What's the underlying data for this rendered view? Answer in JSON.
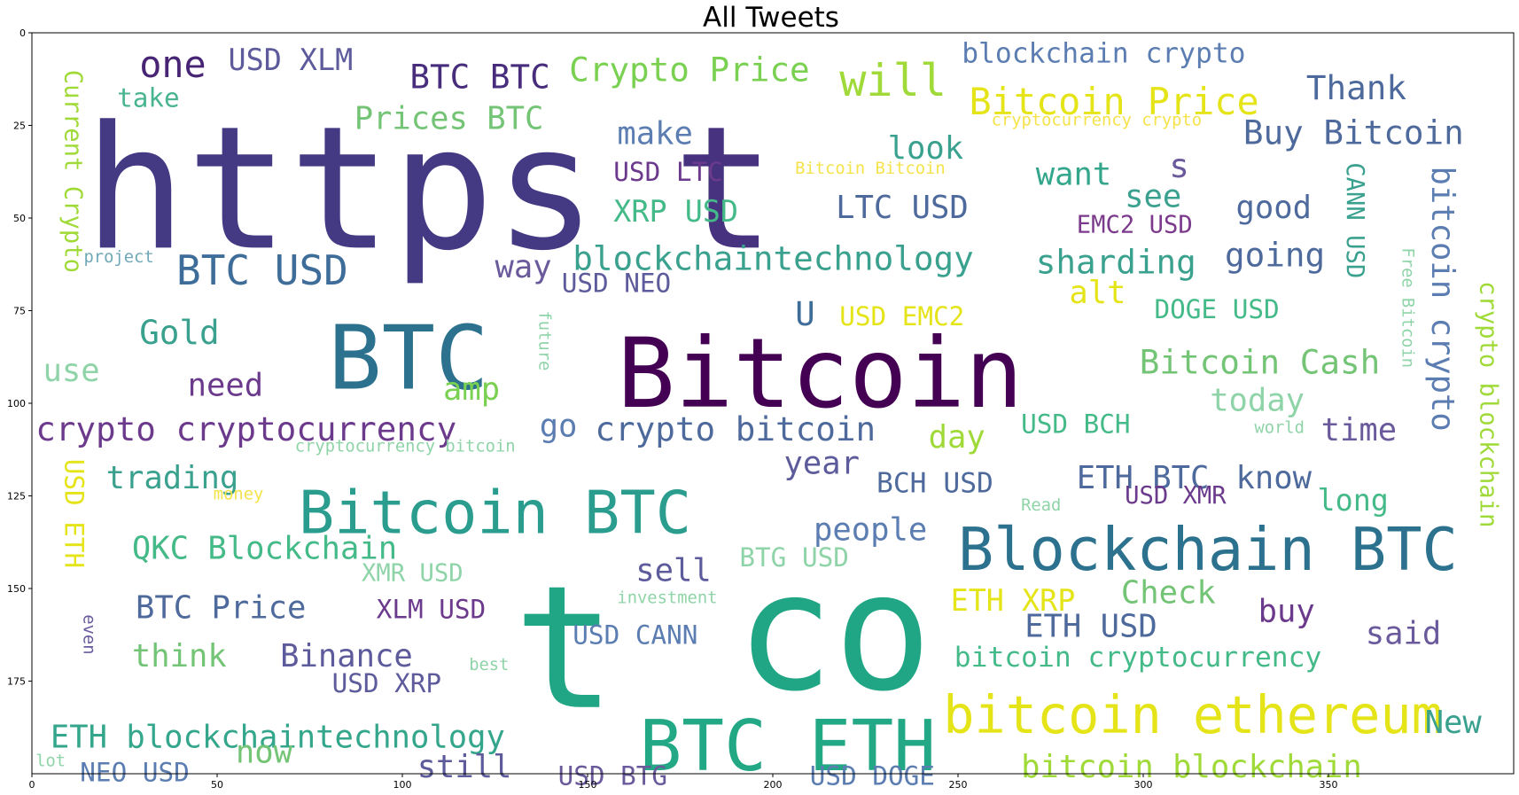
{
  "chart_data": {
    "type": "wordcloud",
    "title": "All Tweets",
    "xlim": [
      0,
      400
    ],
    "ylim": [
      200,
      0
    ],
    "x_ticks": [
      0,
      50,
      100,
      150,
      200,
      250,
      300,
      350
    ],
    "y_ticks": [
      0,
      25,
      50,
      75,
      100,
      125,
      150,
      175
    ],
    "words": [
      {
        "text": "https",
        "x": 14,
        "y": 58,
        "size": 46,
        "color": "#443a83",
        "rot": 0
      },
      {
        "text": "t",
        "x": 173,
        "y": 58,
        "size": 46,
        "color": "#46327e",
        "rot": 0
      },
      {
        "text": "Bitcoin",
        "x": 158,
        "y": 101,
        "size": 26,
        "color": "#440154",
        "rot": 0
      },
      {
        "text": "BTC",
        "x": 80,
        "y": 96,
        "size": 24,
        "color": "#2c728e",
        "rot": 0
      },
      {
        "text": "t",
        "x": 130,
        "y": 182,
        "size": 46,
        "color": "#21a685",
        "rot": 0
      },
      {
        "text": "co",
        "x": 190,
        "y": 177,
        "size": 44,
        "color": "#21a685",
        "rot": 0
      },
      {
        "text": "Bitcoin BTC",
        "x": 72,
        "y": 135,
        "size": 16,
        "color": "#2a9d8f",
        "rot": 0
      },
      {
        "text": "Blockchain BTC",
        "x": 250,
        "y": 145,
        "size": 16,
        "color": "#2c728e",
        "rot": 0
      },
      {
        "text": "BTC ETH",
        "x": 164,
        "y": 199,
        "size": 19,
        "color": "#22a884",
        "rot": 0
      },
      {
        "text": "bitcoin ethereum",
        "x": 246,
        "y": 189,
        "size": 14,
        "color": "#e5e419",
        "rot": 0
      },
      {
        "text": "Bitcoin Price",
        "x": 253,
        "y": 22,
        "size": 10,
        "color": "#e5e419",
        "rot": 0
      },
      {
        "text": "will",
        "x": 218,
        "y": 17,
        "size": 12,
        "color": "#a0da39",
        "rot": 0
      },
      {
        "text": "Crypto Price",
        "x": 145,
        "y": 13,
        "size": 9,
        "color": "#7ad151",
        "rot": 0
      },
      {
        "text": "BTC BTC",
        "x": 102,
        "y": 15,
        "size": 9,
        "color": "#472d7b",
        "rot": 0
      },
      {
        "text": "one",
        "x": 29,
        "y": 12,
        "size": 10,
        "color": "#482475",
        "rot": 0
      },
      {
        "text": "USD XLM",
        "x": 53,
        "y": 10,
        "size": 8,
        "color": "#5d5b9b",
        "rot": 0
      },
      {
        "text": "blockchain crypto",
        "x": 251,
        "y": 8,
        "size": 7.5,
        "color": "#5b7db1",
        "rot": 0
      },
      {
        "text": "Thank",
        "x": 344,
        "y": 18,
        "size": 9,
        "color": "#4e6a9c",
        "rot": 0
      },
      {
        "text": "Buy Bitcoin",
        "x": 327,
        "y": 30,
        "size": 9,
        "color": "#4e6a9c",
        "rot": 0
      },
      {
        "text": "cryptocurrency crypto",
        "x": 259,
        "y": 25,
        "size": 4.5,
        "color": "#f5e34b",
        "rot": 0
      },
      {
        "text": "take",
        "x": 23,
        "y": 20,
        "size": 7,
        "color": "#49b490",
        "rot": 0
      },
      {
        "text": "Prices BTC",
        "x": 87,
        "y": 26,
        "size": 8.5,
        "color": "#74c476",
        "rot": 0
      },
      {
        "text": "make",
        "x": 158,
        "y": 30,
        "size": 8.5,
        "color": "#5b7db1",
        "rot": 0
      },
      {
        "text": "look",
        "x": 231,
        "y": 34,
        "size": 8.5,
        "color": "#3aa18f",
        "rot": 0
      },
      {
        "text": "want",
        "x": 271,
        "y": 41,
        "size": 8.5,
        "color": "#33a68b",
        "rot": 0
      },
      {
        "text": "s",
        "x": 307,
        "y": 39,
        "size": 9,
        "color": "#6a5a9c",
        "rot": 0
      },
      {
        "text": "USD LTC",
        "x": 157,
        "y": 40,
        "size": 7,
        "color": "#6c3a8c",
        "rot": 0
      },
      {
        "text": "Bitcoin Bitcoin",
        "x": 206,
        "y": 38,
        "size": 4.5,
        "color": "#f5e34b",
        "rot": 0
      },
      {
        "text": "XRP USD",
        "x": 157,
        "y": 51,
        "size": 8,
        "color": "#45ba89",
        "rot": 0
      },
      {
        "text": "LTC USD",
        "x": 217,
        "y": 50,
        "size": 8.5,
        "color": "#4e6a9c",
        "rot": 0
      },
      {
        "text": "see",
        "x": 295,
        "y": 47,
        "size": 8.5,
        "color": "#3aa18f",
        "rot": 0
      },
      {
        "text": "good",
        "x": 325,
        "y": 50,
        "size": 8.5,
        "color": "#4e6a9c",
        "rot": 0
      },
      {
        "text": "EMC2 USD",
        "x": 282,
        "y": 54,
        "size": 6.5,
        "color": "#7b3a8c",
        "rot": 0
      },
      {
        "text": "Current Crypto",
        "x": 9,
        "y": 10,
        "size": 6.5,
        "color": "#a0da39",
        "rot": 90
      },
      {
        "text": "CANN USD",
        "x": 355,
        "y": 35,
        "size": 6.5,
        "color": "#3aa18f",
        "rot": 90
      },
      {
        "text": "bitcoin crypto",
        "x": 378,
        "y": 36,
        "size": 8.5,
        "color": "#5b7db1",
        "rot": 90
      },
      {
        "text": "crypto blockchain",
        "x": 391,
        "y": 67,
        "size": 6.5,
        "color": "#a0da39",
        "rot": 90
      },
      {
        "text": "Free Bitcoin",
        "x": 370,
        "y": 58,
        "size": 4.5,
        "color": "#8fd4a8",
        "rot": 90
      },
      {
        "text": "project",
        "x": 14,
        "y": 62,
        "size": 4.5,
        "color": "#6fa8b8",
        "rot": 0
      },
      {
        "text": "BTC USD",
        "x": 39,
        "y": 68,
        "size": 11,
        "color": "#3f6d9a",
        "rot": 0
      },
      {
        "text": "way",
        "x": 125,
        "y": 66,
        "size": 8.5,
        "color": "#6a5a9c",
        "rot": 0
      },
      {
        "text": "blockchaintechnology",
        "x": 146,
        "y": 64,
        "size": 9,
        "color": "#3aa18f",
        "rot": 0
      },
      {
        "text": "sharding",
        "x": 271,
        "y": 65,
        "size": 9,
        "color": "#3aa18f",
        "rot": 0
      },
      {
        "text": "going",
        "x": 322,
        "y": 63,
        "size": 9,
        "color": "#4e6a9c",
        "rot": 0
      },
      {
        "text": "USD NEO",
        "x": 143,
        "y": 70,
        "size": 7,
        "color": "#5d5b9b",
        "rot": 0
      },
      {
        "text": "alt",
        "x": 280,
        "y": 73,
        "size": 8.5,
        "color": "#e5e419",
        "rot": 0
      },
      {
        "text": "U",
        "x": 206,
        "y": 79,
        "size": 9,
        "color": "#3f6d9a",
        "rot": 0
      },
      {
        "text": "USD EMC2",
        "x": 218,
        "y": 79,
        "size": 7,
        "color": "#e5e419",
        "rot": 0
      },
      {
        "text": "DOGE USD",
        "x": 303,
        "y": 77,
        "size": 7,
        "color": "#45ba89",
        "rot": 0
      },
      {
        "text": "Gold",
        "x": 29,
        "y": 84,
        "size": 9,
        "color": "#3aa18f",
        "rot": 0
      },
      {
        "text": "use",
        "x": 3,
        "y": 94,
        "size": 8.5,
        "color": "#8fd4a8",
        "rot": 0
      },
      {
        "text": "need",
        "x": 42,
        "y": 98,
        "size": 8.5,
        "color": "#6c3a8c",
        "rot": 0
      },
      {
        "text": "amp",
        "x": 111,
        "y": 99,
        "size": 8.5,
        "color": "#7ad151",
        "rot": 0
      },
      {
        "text": "future",
        "x": 137,
        "y": 75,
        "size": 4.5,
        "color": "#8fd4a8",
        "rot": 90
      },
      {
        "text": "Bitcoin Cash",
        "x": 299,
        "y": 92,
        "size": 9,
        "color": "#74c476",
        "rot": 0
      },
      {
        "text": "today",
        "x": 318,
        "y": 102,
        "size": 8.5,
        "color": "#8fd4a8",
        "rot": 0
      },
      {
        "text": "crypto cryptocurrency",
        "x": 1,
        "y": 110,
        "size": 9,
        "color": "#6c3a8c",
        "rot": 0
      },
      {
        "text": "go",
        "x": 137,
        "y": 109,
        "size": 8.5,
        "color": "#5b7db1",
        "rot": 0
      },
      {
        "text": "crypto bitcoin",
        "x": 152,
        "y": 110,
        "size": 9,
        "color": "#4e6a9c",
        "rot": 0
      },
      {
        "text": "day",
        "x": 242,
        "y": 112,
        "size": 8.5,
        "color": "#a0da39",
        "rot": 0
      },
      {
        "text": "USD BCH",
        "x": 267,
        "y": 108,
        "size": 7,
        "color": "#45ba89",
        "rot": 0
      },
      {
        "text": "world",
        "x": 330,
        "y": 108,
        "size": 4.5,
        "color": "#8fd4a8",
        "rot": 0
      },
      {
        "text": "time",
        "x": 348,
        "y": 110,
        "size": 8.5,
        "color": "#6a5a9c",
        "rot": 0
      },
      {
        "text": "cryptocurrency bitcoin",
        "x": 71,
        "y": 113,
        "size": 4.5,
        "color": "#8fd4a8",
        "rot": 0
      },
      {
        "text": "year",
        "x": 203,
        "y": 119,
        "size": 8.5,
        "color": "#5d5b9b",
        "rot": 0
      },
      {
        "text": "USD ETH",
        "x": 9,
        "y": 115,
        "size": 7,
        "color": "#e5e419",
        "rot": 90
      },
      {
        "text": "trading",
        "x": 20,
        "y": 123,
        "size": 8.5,
        "color": "#3aa18f",
        "rot": 0
      },
      {
        "text": "BCH USD",
        "x": 228,
        "y": 124,
        "size": 7.5,
        "color": "#4e6a9c",
        "rot": 0
      },
      {
        "text": "ETH BTC",
        "x": 282,
        "y": 123,
        "size": 8.5,
        "color": "#4e6a9c",
        "rot": 0
      },
      {
        "text": "know",
        "x": 325,
        "y": 123,
        "size": 8.5,
        "color": "#4e6a9c",
        "rot": 0
      },
      {
        "text": "USD XMR",
        "x": 295,
        "y": 127,
        "size": 6.5,
        "color": "#6c3a8c",
        "rot": 0
      },
      {
        "text": "long",
        "x": 347,
        "y": 129,
        "size": 8,
        "color": "#45ba89",
        "rot": 0
      },
      {
        "text": "money",
        "x": 49,
        "y": 126,
        "size": 4.5,
        "color": "#f5e34b",
        "rot": 0
      },
      {
        "text": "Read",
        "x": 267,
        "y": 129,
        "size": 4.5,
        "color": "#8fd4a8",
        "rot": 0
      },
      {
        "text": "people",
        "x": 211,
        "y": 137,
        "size": 8.5,
        "color": "#5b7db1",
        "rot": 0
      },
      {
        "text": "QKC Blockchain",
        "x": 27,
        "y": 142,
        "size": 8.5,
        "color": "#45ba89",
        "rot": 0
      },
      {
        "text": "BTG USD",
        "x": 191,
        "y": 144,
        "size": 7,
        "color": "#8fd4a8",
        "rot": 0
      },
      {
        "text": "XMR USD",
        "x": 89,
        "y": 148,
        "size": 6.5,
        "color": "#8fd4a8",
        "rot": 0
      },
      {
        "text": "sell",
        "x": 163,
        "y": 148,
        "size": 8.5,
        "color": "#5d5b9b",
        "rot": 0
      },
      {
        "text": "ETH XRP",
        "x": 248,
        "y": 156,
        "size": 8,
        "color": "#e5e419",
        "rot": 0
      },
      {
        "text": "Check",
        "x": 294,
        "y": 154,
        "size": 8.5,
        "color": "#74c476",
        "rot": 0
      },
      {
        "text": "BTC Price",
        "x": 28,
        "y": 158,
        "size": 8.5,
        "color": "#4e6a9c",
        "rot": 0
      },
      {
        "text": "XLM USD",
        "x": 93,
        "y": 158,
        "size": 7,
        "color": "#6c3a8c",
        "rot": 0
      },
      {
        "text": "investment",
        "x": 158,
        "y": 154,
        "size": 4.5,
        "color": "#8fd4a8",
        "rot": 0
      },
      {
        "text": "buy",
        "x": 331,
        "y": 159,
        "size": 8.5,
        "color": "#6c3a8c",
        "rot": 0
      },
      {
        "text": "ETH USD",
        "x": 268,
        "y": 163,
        "size": 8.5,
        "color": "#4e6a9c",
        "rot": 0
      },
      {
        "text": "said",
        "x": 360,
        "y": 165,
        "size": 8.5,
        "color": "#6a5a9c",
        "rot": 0
      },
      {
        "text": "USD CANN",
        "x": 146,
        "y": 165,
        "size": 7,
        "color": "#5b7db1",
        "rot": 0
      },
      {
        "text": "think",
        "x": 27,
        "y": 171,
        "size": 8.5,
        "color": "#74c476",
        "rot": 0
      },
      {
        "text": "Binance",
        "x": 67,
        "y": 171,
        "size": 8.5,
        "color": "#5d5b9b",
        "rot": 0
      },
      {
        "text": "bitcoin cryptocurrency",
        "x": 249,
        "y": 171,
        "size": 7.5,
        "color": "#45ba89",
        "rot": 0
      },
      {
        "text": "even",
        "x": 14,
        "y": 157,
        "size": 4.5,
        "color": "#6a5a9c",
        "rot": 90
      },
      {
        "text": "best",
        "x": 118,
        "y": 172,
        "size": 4.5,
        "color": "#8fd4a8",
        "rot": 0
      },
      {
        "text": "USD XRP",
        "x": 81,
        "y": 178,
        "size": 7,
        "color": "#5d5b9b",
        "rot": 0
      },
      {
        "text": "ETH blockchaintechnology",
        "x": 5,
        "y": 193,
        "size": 8.5,
        "color": "#33a68b",
        "rot": 0
      },
      {
        "text": "New",
        "x": 376,
        "y": 189,
        "size": 8.5,
        "color": "#3aa18f",
        "rot": 0
      },
      {
        "text": "now",
        "x": 55,
        "y": 197,
        "size": 8.5,
        "color": "#74c476",
        "rot": 0
      },
      {
        "text": "still",
        "x": 104,
        "y": 201,
        "size": 8.5,
        "color": "#5d5b9b",
        "rot": 0
      },
      {
        "text": "lot",
        "x": 1,
        "y": 198,
        "size": 4.5,
        "color": "#8fd4a8",
        "rot": 0
      },
      {
        "text": "NEO USD",
        "x": 13,
        "y": 202,
        "size": 7,
        "color": "#5b7db1",
        "rot": 0
      },
      {
        "text": "USD BTG",
        "x": 142,
        "y": 203,
        "size": 7,
        "color": "#6a5a9c",
        "rot": 0
      },
      {
        "text": "USD DOGE",
        "x": 210,
        "y": 203,
        "size": 7,
        "color": "#5b7db1",
        "rot": 0
      },
      {
        "text": "bitcoin blockchain",
        "x": 267,
        "y": 201,
        "size": 8.5,
        "color": "#a0da39",
        "rot": 0
      }
    ]
  }
}
